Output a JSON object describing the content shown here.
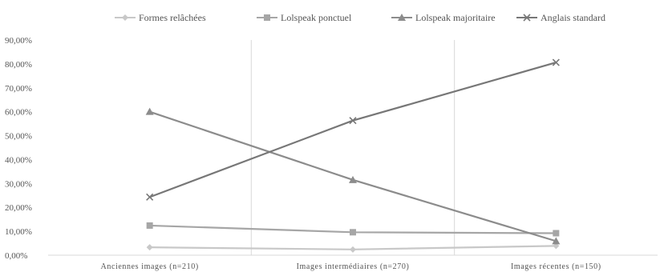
{
  "chart_data": {
    "type": "line",
    "title": "",
    "xlabel": "",
    "ylabel": "",
    "categories": [
      "Anciennes images (n=210)",
      "Images intermédiaires (n=270)",
      "Images récentes (n=150)"
    ],
    "ylim": [
      0,
      90
    ],
    "ytick_values": [
      0,
      10,
      20,
      30,
      40,
      50,
      60,
      70,
      80,
      90
    ],
    "ytick_labels": [
      "0,00%",
      "10,00%",
      "20,00%",
      "30,00%",
      "40,00%",
      "50,00%",
      "60,00%",
      "70,00%",
      "80,00%",
      "90,00%"
    ],
    "grid": false,
    "legend_position": "top",
    "series": [
      {
        "name": "Formes relâchées",
        "values": [
          3.3,
          2.4,
          3.9
        ],
        "color": "#c8c8c8",
        "marker": "diamond"
      },
      {
        "name": "Lolspeak ponctuel",
        "values": [
          12.4,
          9.6,
          9.2
        ],
        "color": "#a6a6a6",
        "marker": "square"
      },
      {
        "name": "Lolspeak majoritaire",
        "values": [
          60.0,
          31.5,
          5.9
        ],
        "color": "#8c8c8c",
        "marker": "triangle"
      },
      {
        "name": "Anglais standard",
        "values": [
          24.3,
          56.3,
          80.6
        ],
        "color": "#777777",
        "marker": "x"
      }
    ]
  }
}
